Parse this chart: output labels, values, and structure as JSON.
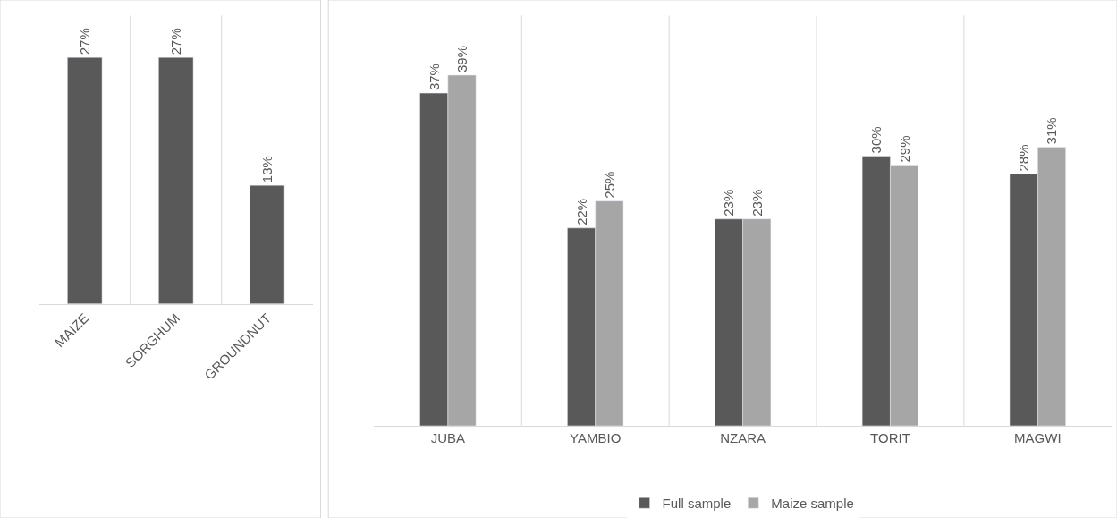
{
  "chart_data": [
    {
      "type": "bar",
      "categories": [
        "MAIZE",
        "SORGHUM",
        "GROUNDNUT"
      ],
      "series": [
        {
          "color": "#595959",
          "values": [
            27,
            27,
            13
          ],
          "value_labels": [
            "27%",
            "27%",
            "13%"
          ]
        }
      ],
      "tick_labels": "x",
      "grid": "x",
      "legend": false
    },
    {
      "type": "bar",
      "categories": [
        "JUBA",
        "YAMBIO",
        "NZARA",
        "TORIT",
        "MAGWI"
      ],
      "series": [
        {
          "name": "Full sample",
          "color": "#595959",
          "values": [
            37,
            22,
            23,
            30,
            28
          ],
          "value_labels": [
            "37%",
            "22%",
            "23%",
            "30%",
            "28%"
          ]
        },
        {
          "name": "Maize sample",
          "color": "#a6a6a6",
          "values": [
            39,
            25,
            23,
            29,
            31
          ],
          "value_labels": [
            "39%",
            "25%",
            "23%",
            "29%",
            "31%"
          ]
        }
      ],
      "tick_labels": "x",
      "grid": "x",
      "legend": "bottom"
    }
  ]
}
